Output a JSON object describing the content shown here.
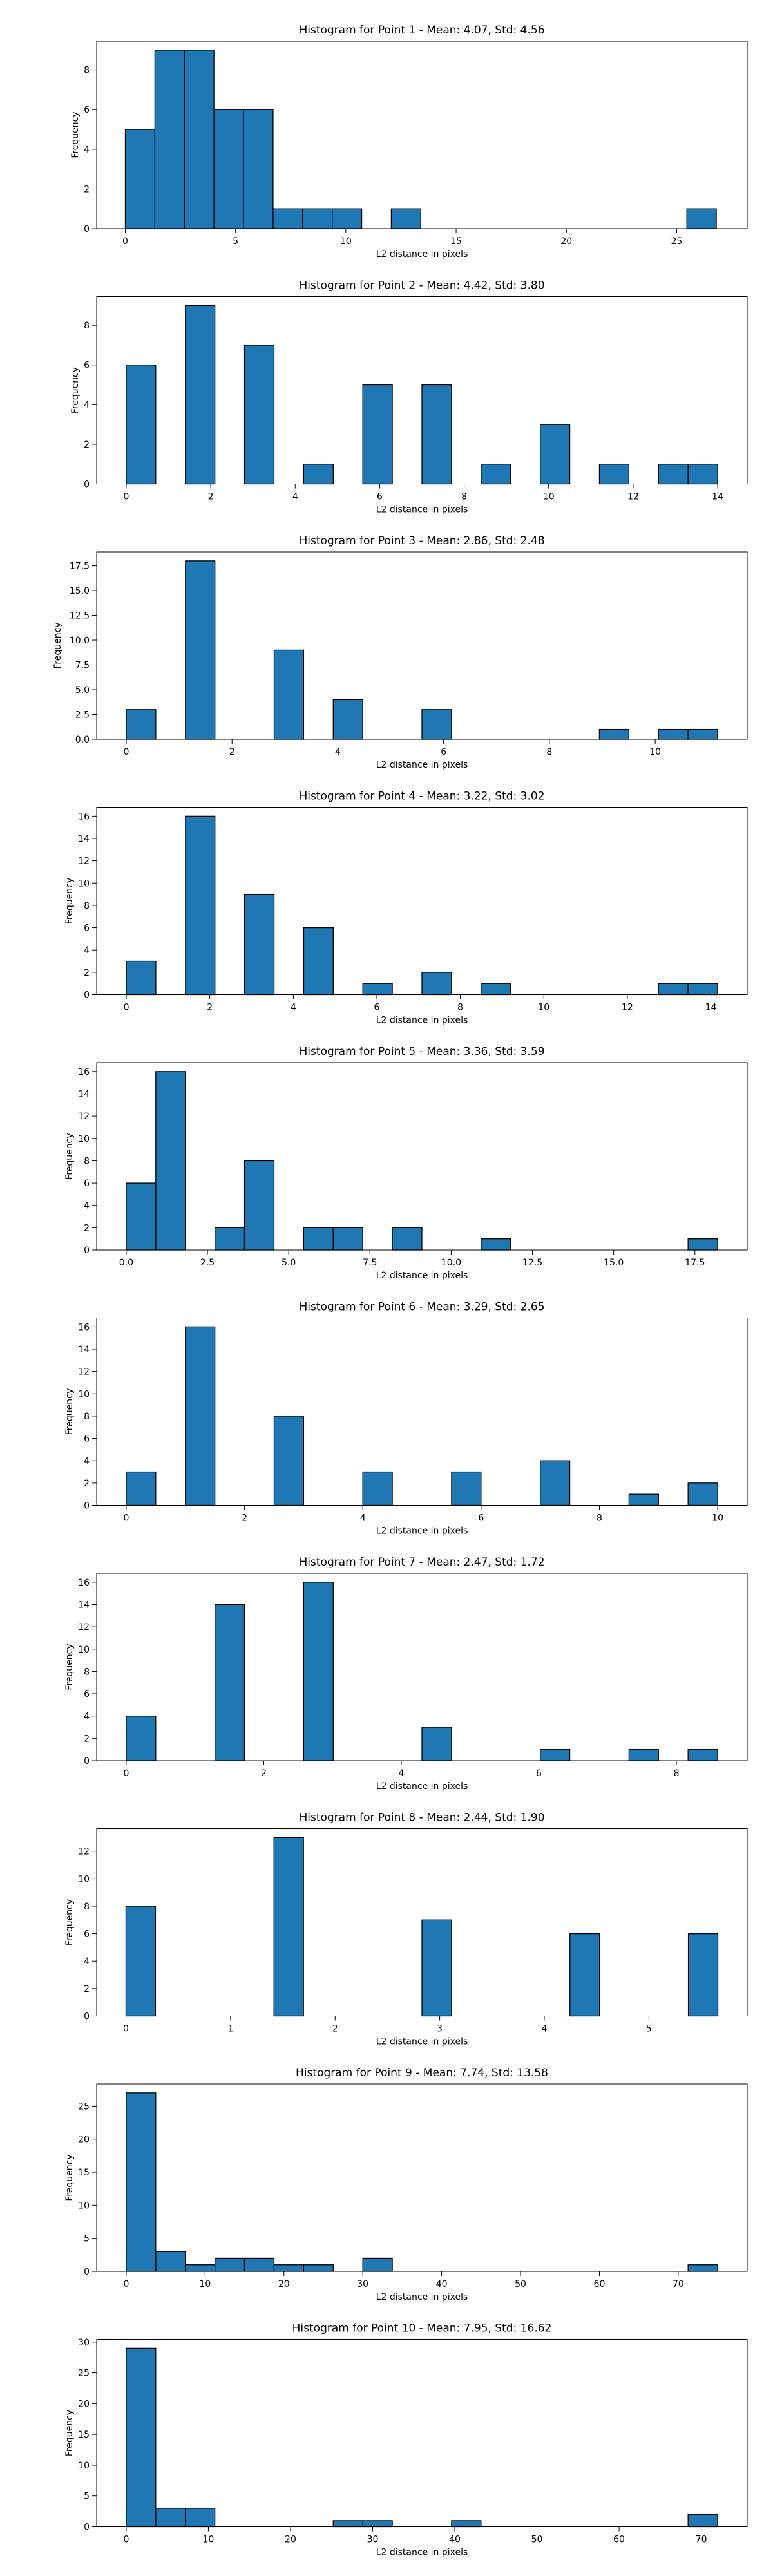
{
  "chart_data": [
    {
      "type": "bar",
      "title": "Histogram for Point 1 - Mean: 4.07, Std: 4.56",
      "xlabel": "L2 distance in pixels",
      "ylabel": "Frequency",
      "xlim": [
        -1.3,
        28.2
      ],
      "ylim": [
        0,
        9.45
      ],
      "xticks": [
        0,
        5,
        10,
        15,
        20,
        25
      ],
      "xtick_labels": [
        "0",
        "5",
        "10",
        "15",
        "20",
        "25"
      ],
      "yticks": [
        0,
        2,
        4,
        6,
        8
      ],
      "ytick_labels": [
        "0",
        "2",
        "4",
        "6",
        "8"
      ],
      "bin_edges": [
        0.0,
        1.34,
        2.68,
        4.02,
        5.36,
        6.7,
        8.04,
        9.38,
        10.72,
        12.06,
        13.4,
        14.74,
        16.08,
        17.42,
        18.76,
        20.1,
        21.44,
        22.78,
        24.12,
        25.46,
        26.8
      ],
      "counts": [
        5,
        9,
        9,
        6,
        6,
        1,
        1,
        1,
        0,
        1,
        0,
        0,
        0,
        0,
        0,
        0,
        0,
        0,
        0,
        1
      ],
      "grid": false,
      "bar_color": "#1f77b4"
    },
    {
      "type": "bar",
      "title": "Histogram for Point 2 - Mean: 4.42, Std: 3.80",
      "xlabel": "L2 distance in pixels",
      "ylabel": "Frequency",
      "xlim": [
        -0.7,
        14.7
      ],
      "ylim": [
        0,
        9.45
      ],
      "xticks": [
        0,
        2,
        4,
        6,
        8,
        10,
        12,
        14
      ],
      "xtick_labels": [
        "0",
        "2",
        "4",
        "6",
        "8",
        "10",
        "12",
        "14"
      ],
      "yticks": [
        0,
        2,
        4,
        6,
        8
      ],
      "ytick_labels": [
        "0",
        "2",
        "4",
        "6",
        "8"
      ],
      "bin_edges": [
        0.0,
        0.7,
        1.4,
        2.1,
        2.8,
        3.5,
        4.2,
        4.9,
        5.6,
        6.3,
        7.0,
        7.7,
        8.4,
        9.1,
        9.8,
        10.5,
        11.2,
        11.9,
        12.6,
        13.3,
        14.0
      ],
      "counts": [
        6,
        0,
        9,
        0,
        7,
        0,
        1,
        0,
        5,
        0,
        5,
        0,
        1,
        0,
        3,
        0,
        1,
        0,
        1,
        1
      ],
      "grid": false,
      "bar_color": "#1f77b4"
    },
    {
      "type": "bar",
      "title": "Histogram for Point 3 - Mean: 2.86, Std: 2.48",
      "xlabel": "L2 distance in pixels",
      "ylabel": "Frequency",
      "xlim": [
        -0.56,
        11.74
      ],
      "ylim": [
        0,
        18.9
      ],
      "xticks": [
        0,
        2,
        4,
        6,
        8,
        10
      ],
      "xtick_labels": [
        "0",
        "2",
        "4",
        "6",
        "8",
        "10"
      ],
      "yticks": [
        0,
        2.5,
        5,
        7.5,
        10,
        12.5,
        15,
        17.5
      ],
      "ytick_labels": [
        "0.0",
        "2.5",
        "5.0",
        "7.5",
        "10.0",
        "12.5",
        "15.0",
        "17.5"
      ],
      "bin_edges": [
        0.0,
        0.559,
        1.118,
        1.677,
        2.236,
        2.795,
        3.354,
        3.913,
        4.472,
        5.031,
        5.59,
        6.149,
        6.708,
        7.267,
        7.826,
        8.385,
        8.944,
        9.503,
        10.062,
        10.621,
        11.18
      ],
      "counts": [
        3,
        0,
        18,
        0,
        0,
        9,
        0,
        4,
        0,
        0,
        3,
        0,
        0,
        0,
        0,
        0,
        1,
        0,
        1,
        1
      ],
      "grid": false,
      "bar_color": "#1f77b4"
    },
    {
      "type": "bar",
      "title": "Histogram for Point 4 - Mean: 3.22, Std: 3.02",
      "xlabel": "L2 distance in pixels",
      "ylabel": "Frequency",
      "xlim": [
        -0.71,
        14.87
      ],
      "ylim": [
        0,
        16.8
      ],
      "xticks": [
        0,
        2,
        4,
        6,
        8,
        10,
        12,
        14
      ],
      "xtick_labels": [
        "0",
        "2",
        "4",
        "6",
        "8",
        "10",
        "12",
        "14"
      ],
      "yticks": [
        0,
        2,
        4,
        6,
        8,
        10,
        12,
        14,
        16
      ],
      "ytick_labels": [
        "0",
        "2",
        "4",
        "6",
        "8",
        "10",
        "12",
        "14",
        "16"
      ],
      "bin_edges": [
        0.0,
        0.708,
        1.416,
        2.124,
        2.832,
        3.54,
        4.248,
        4.956,
        5.664,
        6.372,
        7.08,
        7.788,
        8.496,
        9.204,
        9.912,
        10.62,
        11.328,
        12.036,
        12.744,
        13.452,
        14.16
      ],
      "counts": [
        3,
        0,
        16,
        0,
        9,
        0,
        6,
        0,
        1,
        0,
        2,
        0,
        1,
        0,
        0,
        0,
        0,
        0,
        1,
        1
      ],
      "grid": false,
      "bar_color": "#1f77b4"
    },
    {
      "type": "bar",
      "title": "Histogram for Point 5 - Mean: 3.36, Std: 3.59",
      "xlabel": "L2 distance in pixels",
      "ylabel": "Frequency",
      "xlim": [
        -0.91,
        19.11
      ],
      "ylim": [
        0,
        16.8
      ],
      "xticks": [
        0,
        2.5,
        5,
        7.5,
        10,
        12.5,
        15,
        17.5
      ],
      "xtick_labels": [
        "0.0",
        "2.5",
        "5.0",
        "7.5",
        "10.0",
        "12.5",
        "15.0",
        "17.5"
      ],
      "yticks": [
        0,
        2,
        4,
        6,
        8,
        10,
        12,
        14,
        16
      ],
      "ytick_labels": [
        "0",
        "2",
        "4",
        "6",
        "8",
        "10",
        "12",
        "14",
        "16"
      ],
      "bin_edges": [
        0.0,
        0.91,
        1.82,
        2.73,
        3.64,
        4.55,
        5.46,
        6.37,
        7.28,
        8.19,
        9.1,
        10.01,
        10.92,
        11.83,
        12.74,
        13.65,
        14.56,
        15.47,
        16.38,
        17.29,
        18.2
      ],
      "counts": [
        6,
        16,
        0,
        2,
        8,
        0,
        2,
        2,
        0,
        2,
        0,
        0,
        1,
        0,
        0,
        0,
        0,
        0,
        0,
        1
      ],
      "grid": false,
      "bar_color": "#1f77b4"
    },
    {
      "type": "bar",
      "title": "Histogram for Point 6 - Mean: 3.29, Std: 2.65",
      "xlabel": "L2 distance in pixels",
      "ylabel": "Frequency",
      "xlim": [
        -0.5,
        10.5
      ],
      "ylim": [
        0,
        16.8
      ],
      "xticks": [
        0,
        2,
        4,
        6,
        8,
        10
      ],
      "xtick_labels": [
        "0",
        "2",
        "4",
        "6",
        "8",
        "10"
      ],
      "yticks": [
        0,
        2,
        4,
        6,
        8,
        10,
        12,
        14,
        16
      ],
      "ytick_labels": [
        "0",
        "2",
        "4",
        "6",
        "8",
        "10",
        "12",
        "14",
        "16"
      ],
      "bin_edges": [
        0.0,
        0.5,
        1.0,
        1.5,
        2.0,
        2.5,
        3.0,
        3.5,
        4.0,
        4.5,
        5.0,
        5.5,
        6.0,
        6.5,
        7.0,
        7.5,
        8.0,
        8.5,
        9.0,
        9.5,
        10.0
      ],
      "counts": [
        3,
        0,
        16,
        0,
        0,
        8,
        0,
        0,
        3,
        0,
        0,
        3,
        0,
        0,
        4,
        0,
        0,
        1,
        0,
        2
      ],
      "grid": false,
      "bar_color": "#1f77b4"
    },
    {
      "type": "bar",
      "title": "Histogram for Point 7 - Mean: 2.47, Std: 1.72",
      "xlabel": "L2 distance in pixels",
      "ylabel": "Frequency",
      "xlim": [
        -0.43,
        9.03
      ],
      "ylim": [
        0,
        16.8
      ],
      "xticks": [
        0,
        2,
        4,
        6,
        8
      ],
      "xtick_labels": [
        "0",
        "2",
        "4",
        "6",
        "8"
      ],
      "yticks": [
        0,
        2,
        4,
        6,
        8,
        10,
        12,
        14,
        16
      ],
      "ytick_labels": [
        "0",
        "2",
        "4",
        "6",
        "8",
        "10",
        "12",
        "14",
        "16"
      ],
      "bin_edges": [
        0.0,
        0.43,
        0.86,
        1.29,
        1.72,
        2.15,
        2.58,
        3.01,
        3.44,
        3.87,
        4.3,
        4.73,
        5.16,
        5.59,
        6.02,
        6.45,
        6.88,
        7.31,
        7.74,
        8.17,
        8.6
      ],
      "counts": [
        4,
        0,
        0,
        14,
        0,
        0,
        16,
        0,
        0,
        0,
        3,
        0,
        0,
        0,
        1,
        0,
        0,
        1,
        0,
        1
      ],
      "grid": false,
      "bar_color": "#1f77b4"
    },
    {
      "type": "bar",
      "title": "Histogram for Point 8 - Mean: 2.44, Std: 1.90",
      "xlabel": "L2 distance in pixels",
      "ylabel": "Frequency",
      "xlim": [
        -0.28,
        5.94
      ],
      "ylim": [
        0,
        13.65
      ],
      "xticks": [
        0,
        1,
        2,
        3,
        4,
        5
      ],
      "xtick_labels": [
        "0",
        "1",
        "2",
        "3",
        "4",
        "5"
      ],
      "yticks": [
        0,
        2,
        4,
        6,
        8,
        10,
        12
      ],
      "ytick_labels": [
        "0",
        "2",
        "4",
        "6",
        "8",
        "10",
        "12"
      ],
      "bin_edges": [
        0.0,
        0.283,
        0.566,
        0.849,
        1.132,
        1.415,
        1.698,
        1.981,
        2.264,
        2.547,
        2.83,
        3.113,
        3.396,
        3.679,
        3.962,
        4.245,
        4.528,
        4.811,
        5.094,
        5.377,
        5.66
      ],
      "counts": [
        8,
        0,
        0,
        0,
        0,
        13,
        0,
        0,
        0,
        0,
        7,
        0,
        0,
        0,
        0,
        6,
        0,
        0,
        0,
        6
      ],
      "grid": false,
      "bar_color": "#1f77b4"
    },
    {
      "type": "bar",
      "title": "Histogram for Point 9 - Mean: 7.74, Std: 13.58",
      "xlabel": "L2 distance in pixels",
      "ylabel": "Frequency",
      "xlim": [
        -3.75,
        78.75
      ],
      "ylim": [
        0,
        28.35
      ],
      "xticks": [
        0,
        10,
        20,
        30,
        40,
        50,
        60,
        70
      ],
      "xtick_labels": [
        "0",
        "10",
        "20",
        "30",
        "40",
        "50",
        "60",
        "70"
      ],
      "yticks": [
        0,
        5,
        10,
        15,
        20,
        25
      ],
      "ytick_labels": [
        "0",
        "5",
        "10",
        "15",
        "20",
        "25"
      ],
      "bin_edges": [
        0.0,
        3.75,
        7.5,
        11.25,
        15.0,
        18.75,
        22.5,
        26.25,
        30.0,
        33.75,
        37.5,
        41.25,
        45.0,
        48.75,
        52.5,
        56.25,
        60.0,
        63.75,
        67.5,
        71.25,
        75.0
      ],
      "counts": [
        27,
        3,
        1,
        2,
        2,
        1,
        1,
        0,
        2,
        0,
        0,
        0,
        0,
        0,
        0,
        0,
        0,
        0,
        0,
        1
      ],
      "grid": false,
      "bar_color": "#1f77b4"
    },
    {
      "type": "bar",
      "title": "Histogram for Point 10 - Mean: 7.95, Std: 16.62",
      "xlabel": "L2 distance in pixels",
      "ylabel": "Frequency",
      "xlim": [
        -3.6,
        75.6
      ],
      "ylim": [
        0,
        30.45
      ],
      "xticks": [
        0,
        10,
        20,
        30,
        40,
        50,
        60,
        70
      ],
      "xtick_labels": [
        "0",
        "10",
        "20",
        "30",
        "40",
        "50",
        "60",
        "70"
      ],
      "yticks": [
        0,
        5,
        10,
        15,
        20,
        25,
        30
      ],
      "ytick_labels": [
        "0",
        "5",
        "10",
        "15",
        "20",
        "25",
        "30"
      ],
      "bin_edges": [
        0.0,
        3.6,
        7.2,
        10.8,
        14.4,
        18.0,
        21.6,
        25.2,
        28.8,
        32.4,
        36.0,
        39.6,
        43.2,
        46.8,
        50.4,
        54.0,
        57.6,
        61.2,
        64.8,
        68.4,
        72.0
      ],
      "counts": [
        29,
        3,
        3,
        0,
        0,
        0,
        0,
        1,
        1,
        0,
        0,
        1,
        0,
        0,
        0,
        0,
        0,
        0,
        0,
        2
      ],
      "grid": false,
      "bar_color": "#1f77b4"
    }
  ]
}
